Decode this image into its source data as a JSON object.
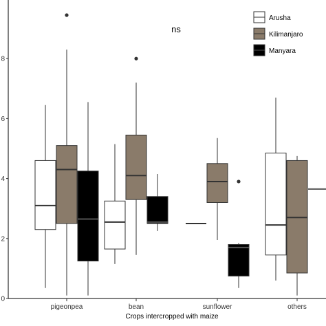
{
  "chart_data": {
    "type": "boxplot",
    "categories": [
      "pigeonpea",
      "bean",
      "sunflower",
      "others"
    ],
    "xlabel": "Crops intercropped with maize",
    "ylabel": "",
    "ylim": [
      0,
      10
    ],
    "yticks": [
      0,
      2,
      4,
      6,
      8
    ],
    "ytick_labels": [
      "0",
      "2",
      "4",
      "6",
      "8"
    ],
    "annotation": "ns",
    "legend_position": "top-right",
    "series": [
      {
        "name": "Arusha",
        "color": "#ffffff",
        "boxes": [
          {
            "category": "pigeonpea",
            "whisker_low": 0.35,
            "q1": 2.3,
            "median": 3.1,
            "q3": 4.6,
            "whisker_high": 6.45,
            "outliers": []
          },
          {
            "category": "bean",
            "whisker_low": 1.15,
            "q1": 1.65,
            "median": 2.55,
            "q3": 3.25,
            "whisker_high": 5.15,
            "outliers": []
          },
          {
            "category": "sunflower",
            "whisker_low": 2.5,
            "q1": 2.5,
            "median": 2.5,
            "q3": 2.5,
            "whisker_high": 2.5,
            "outliers": []
          },
          {
            "category": "others",
            "whisker_low": 0.6,
            "q1": 1.45,
            "median": 2.45,
            "q3": 4.85,
            "whisker_high": 6.7,
            "outliers": []
          }
        ]
      },
      {
        "name": "Kilimanjaro",
        "color": "#8a7b6a",
        "boxes": [
          {
            "category": "pigeonpea",
            "whisker_low": 0.1,
            "q1": 2.5,
            "median": 4.3,
            "q3": 5.1,
            "whisker_high": 8.3,
            "outliers": [
              9.45
            ]
          },
          {
            "category": "bean",
            "whisker_low": 1.45,
            "q1": 3.3,
            "median": 4.1,
            "q3": 5.45,
            "whisker_high": 7.2,
            "outliers": [
              8.0
            ]
          },
          {
            "category": "sunflower",
            "whisker_low": 1.95,
            "q1": 3.2,
            "median": 3.9,
            "q3": 4.5,
            "whisker_high": 5.35,
            "outliers": []
          },
          {
            "category": "others",
            "whisker_low": 0.1,
            "q1": 0.85,
            "median": 2.7,
            "q3": 4.6,
            "whisker_high": 4.75,
            "outliers": []
          }
        ]
      },
      {
        "name": "Manyara",
        "color": "#000000",
        "boxes": [
          {
            "category": "pigeonpea",
            "whisker_low": 0.1,
            "q1": 1.25,
            "median": 2.65,
            "q3": 4.25,
            "whisker_high": 6.55,
            "outliers": []
          },
          {
            "category": "bean",
            "whisker_low": 2.25,
            "q1": 2.5,
            "median": 2.55,
            "q3": 3.4,
            "whisker_high": 4.15,
            "outliers": []
          },
          {
            "category": "sunflower",
            "whisker_low": 0.35,
            "q1": 0.75,
            "median": 1.7,
            "q3": 1.8,
            "whisker_high": 1.85,
            "outliers": [
              3.9
            ]
          },
          {
            "category": "others",
            "whisker_low": 3.65,
            "q1": 3.65,
            "median": 3.65,
            "q3": 3.65,
            "whisker_high": 3.65,
            "outliers": []
          }
        ]
      }
    ]
  }
}
